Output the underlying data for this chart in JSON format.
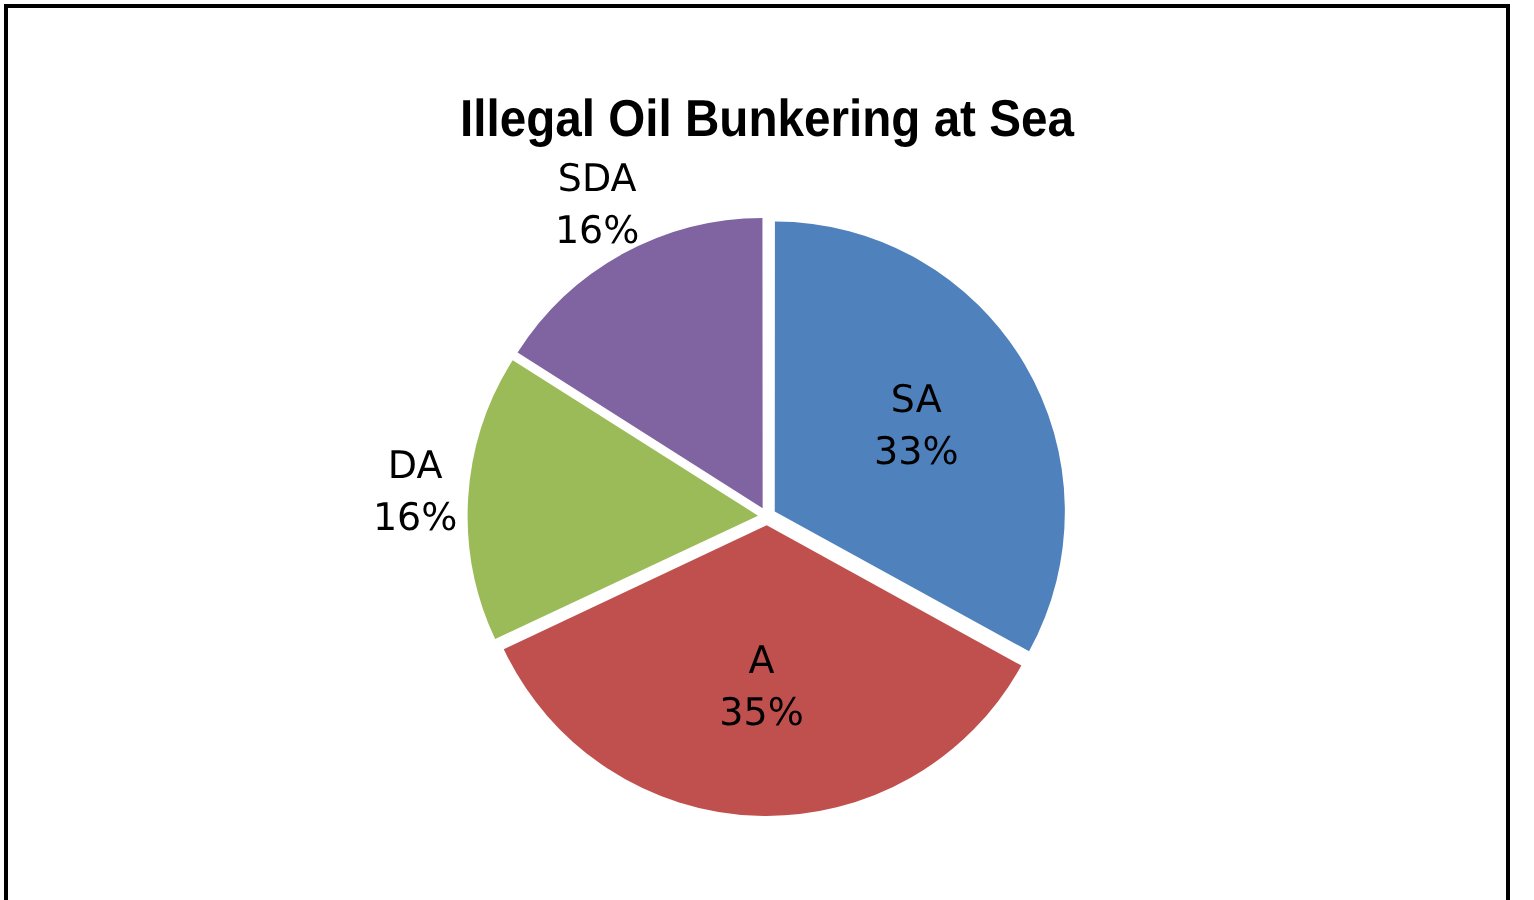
{
  "chart_data": {
    "type": "pie",
    "title": "Illegal Oil Bunkering at Sea",
    "categories": [
      "SA",
      "A",
      "DA",
      "SDA"
    ],
    "values": [
      33,
      35,
      16,
      16
    ],
    "colors": [
      "#4f81bd",
      "#c0504d",
      "#9bbb59",
      "#8064a2"
    ],
    "value_labels": [
      "33%",
      "35%",
      "16%",
      "16%"
    ],
    "legend": false
  }
}
